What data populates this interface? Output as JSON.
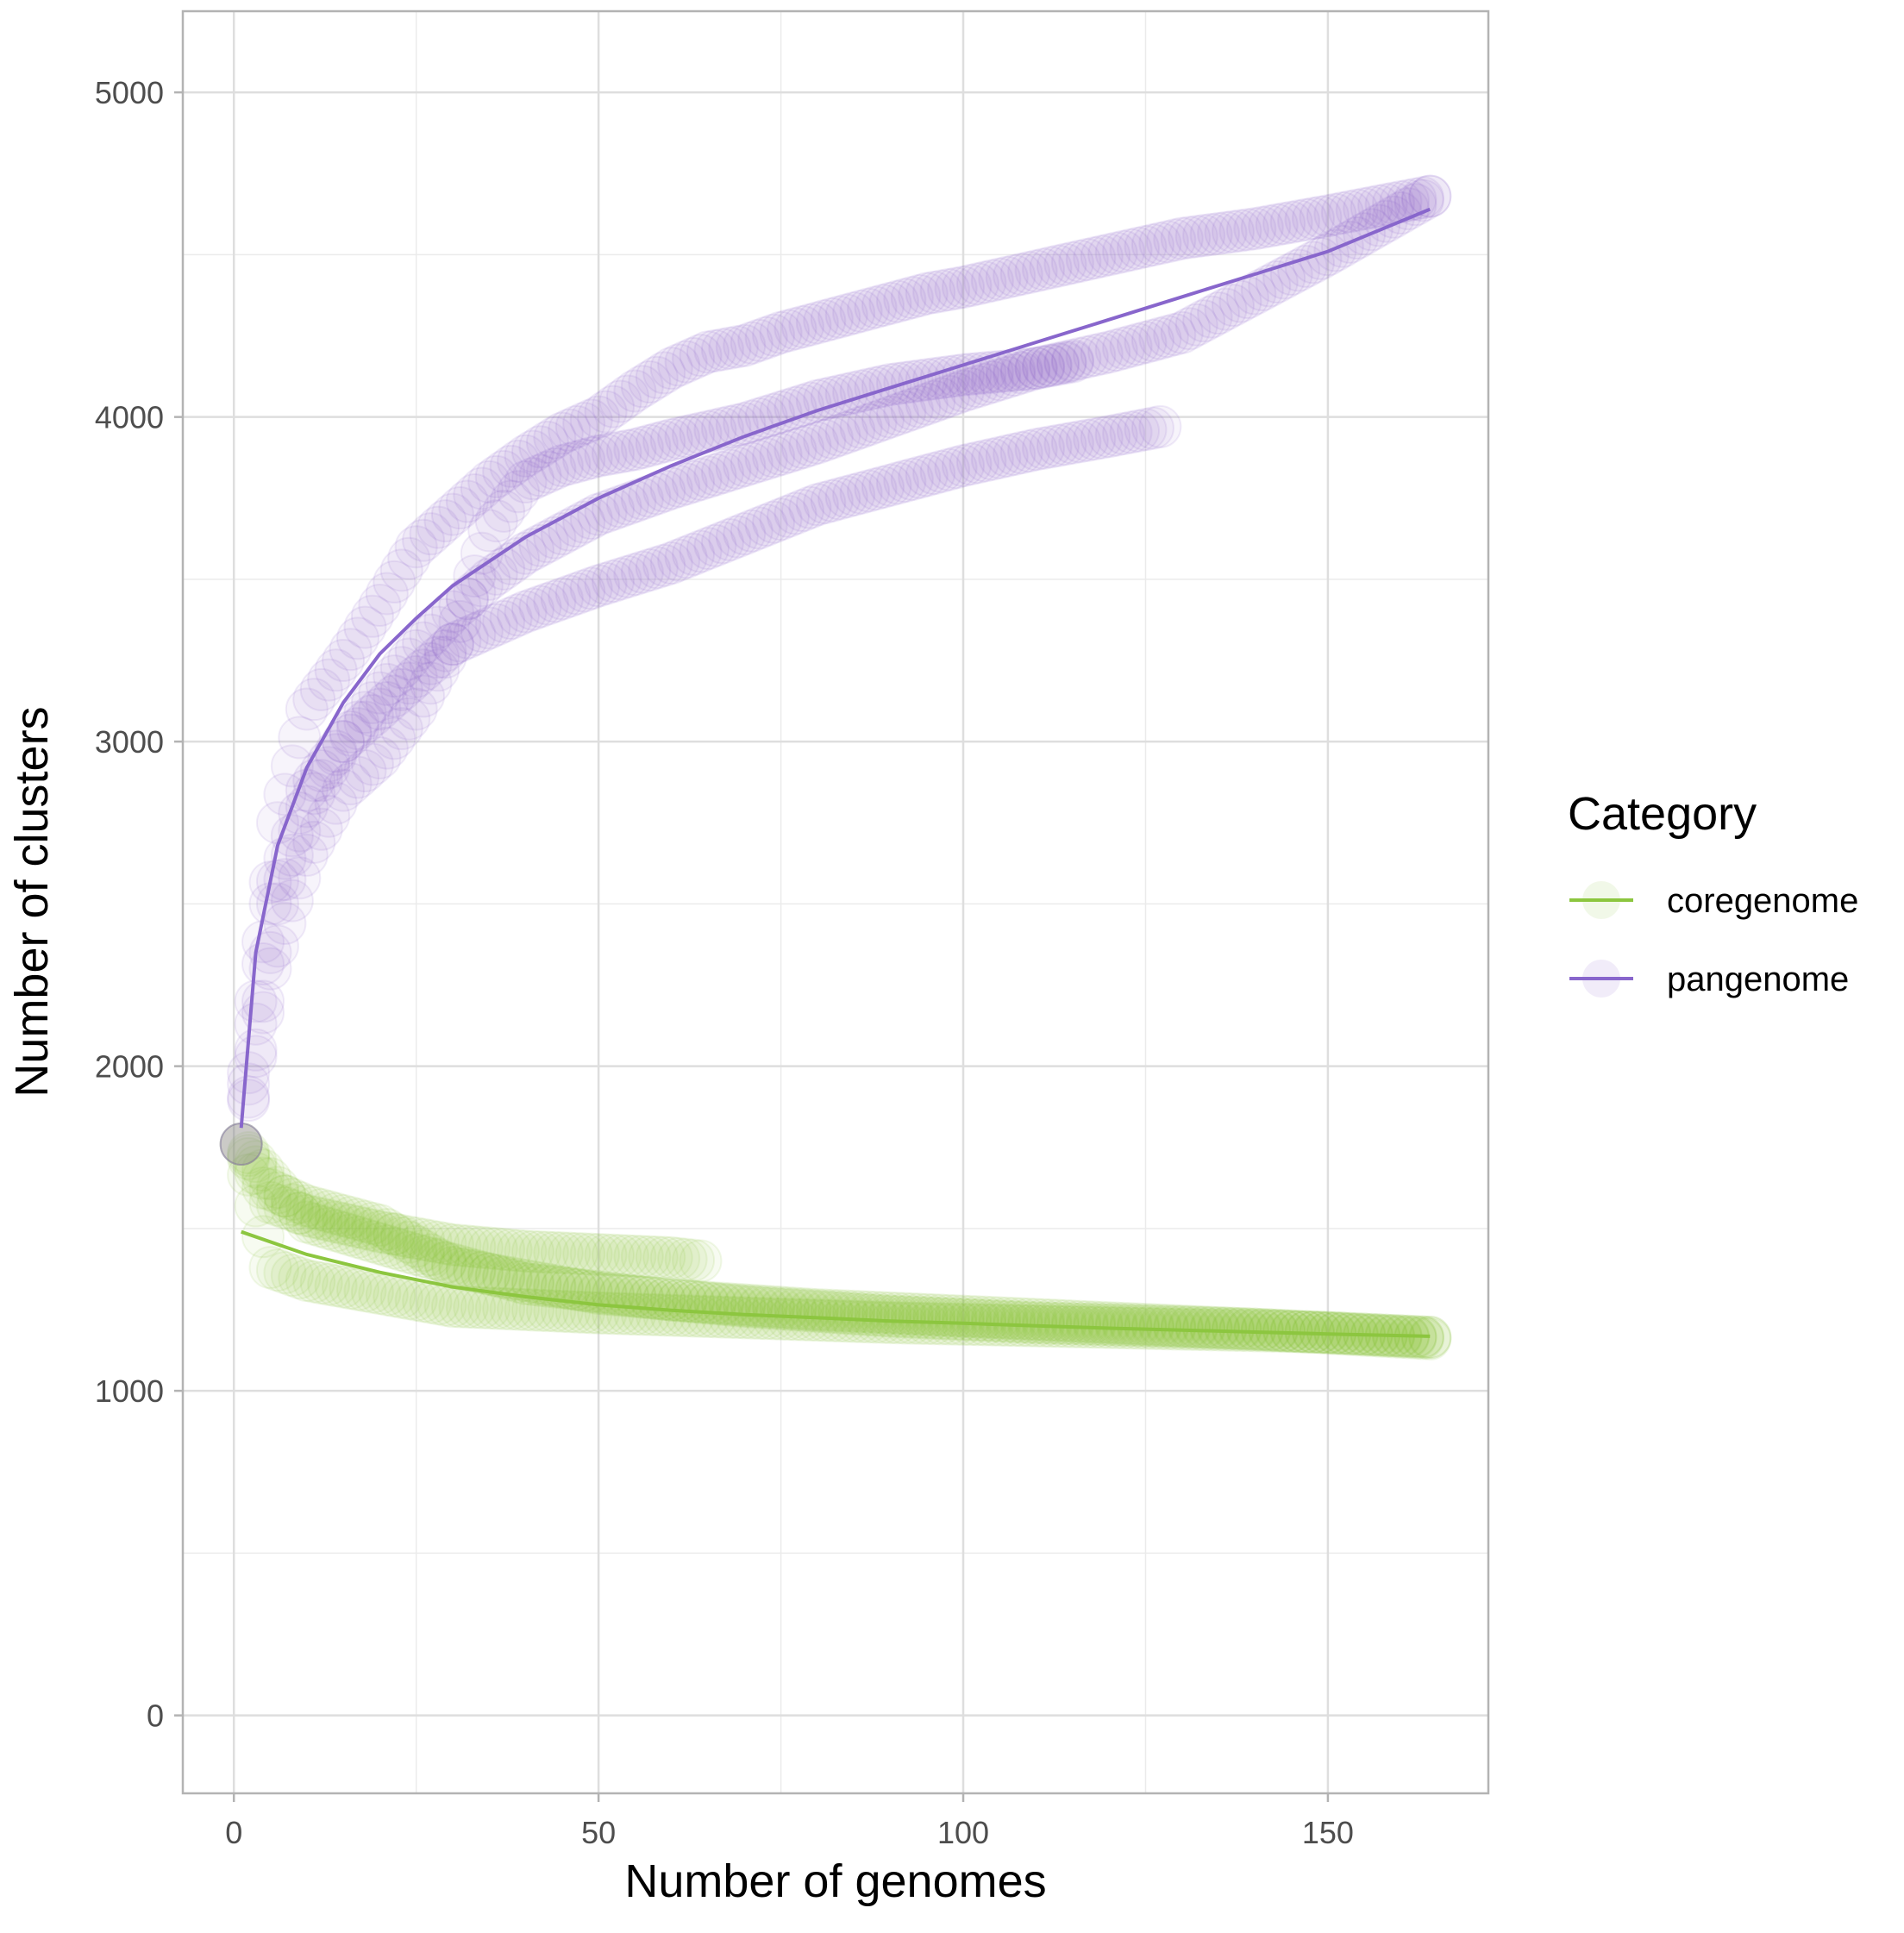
{
  "chart_data": {
    "type": "scatter",
    "title": "",
    "xlabel": "Number of genomes",
    "ylabel": "Number of clusters",
    "xlim": [
      -7,
      172
    ],
    "ylim": [
      -240,
      5250
    ],
    "x_ticks": [
      0,
      50,
      100,
      150
    ],
    "x_tick_labels": [
      "0",
      "50",
      "100",
      "150"
    ],
    "x_minor_gridlines": [
      25,
      75,
      125
    ],
    "y_ticks": [
      0,
      1000,
      2000,
      3000,
      4000,
      5000
    ],
    "y_tick_labels": [
      "0",
      "1000",
      "2000",
      "3000",
      "4000",
      "5000"
    ],
    "y_minor_gridlines": [
      500,
      1500,
      2500,
      3500,
      4500
    ],
    "grid": true,
    "legend": {
      "title": "Category",
      "position": "right",
      "entries": [
        "coregenome",
        "pangenome"
      ]
    },
    "series": [
      {
        "name": "coregenome",
        "color": "#8cc63f",
        "replicates": [
          {
            "x": [
              1,
              5,
              10,
              20,
              30,
              40,
              50,
              60,
              64
            ],
            "y": [
              1760,
              1580,
              1540,
              1490,
              1450,
              1430,
              1420,
              1410,
              1400
            ]
          },
          {
            "x": [
              1,
              5,
              10,
              20,
              30,
              50,
              70,
              90,
              110,
              130,
              150,
              164
            ],
            "y": [
              1760,
              1380,
              1340,
              1300,
              1260,
              1240,
              1225,
              1210,
              1200,
              1190,
              1180,
              1165
            ]
          },
          {
            "x": [
              1,
              5,
              10,
              20,
              30,
              50,
              70,
              90,
              110,
              140,
              164
            ],
            "y": [
              1760,
              1620,
              1570,
              1510,
              1380,
              1300,
              1260,
              1230,
              1210,
              1190,
              1165
            ]
          },
          {
            "x": [
              1,
              10,
              25,
              40,
              60,
              80,
              100,
              120,
              140,
              164
            ],
            "y": [
              1760,
              1520,
              1420,
              1330,
              1280,
              1250,
              1230,
              1210,
              1190,
              1160
            ]
          }
        ],
        "fit": {
          "x": [
            1,
            10,
            20,
            30,
            40,
            50,
            60,
            70,
            80,
            90,
            100,
            110,
            120,
            130,
            140,
            150,
            164
          ],
          "y": [
            1490,
            1420,
            1365,
            1320,
            1290,
            1265,
            1248,
            1235,
            1225,
            1215,
            1208,
            1200,
            1193,
            1187,
            1181,
            1175,
            1168
          ]
        }
      },
      {
        "name": "pangenome",
        "color": "#8866cc",
        "replicates": [
          {
            "x": [
              1,
              3,
              6,
              10,
              15,
              20,
              25,
              30,
              35,
              40,
              45,
              50,
              55,
              60,
              65,
              70,
              75,
              80,
              85,
              90,
              95,
              100,
              110,
              120,
              130,
              140,
              150,
              164
            ],
            "y": [
              1760,
              2200,
              2750,
              3100,
              3250,
              3420,
              3600,
              3700,
              3800,
              3880,
              3950,
              4000,
              4080,
              4150,
              4200,
              4220,
              4260,
              4290,
              4320,
              4350,
              4380,
              4400,
              4450,
              4500,
              4550,
              4580,
              4620,
              4680
            ]
          },
          {
            "x": [
              1,
              3,
              6,
              10,
              15,
              20,
              25,
              30,
              35,
              40,
              50,
              60,
              70,
              80,
              90,
              100,
              110,
              120,
              130,
              140,
              150,
              164
            ],
            "y": [
              1760,
              2050,
              2500,
              2800,
              3000,
              3150,
              3280,
              3400,
              3500,
              3580,
              3700,
              3780,
              3850,
              3920,
              4000,
              4080,
              4150,
              4200,
              4260,
              4380,
              4500,
              4680
            ]
          },
          {
            "x": [
              1,
              5,
              10,
              15,
              20,
              25,
              30,
              40,
              50,
              60,
              70,
              80,
              90,
              100,
              110,
              120,
              127
            ],
            "y": [
              1760,
              2500,
              2850,
              3000,
              3100,
              3200,
              3300,
              3400,
              3480,
              3550,
              3640,
              3730,
              3790,
              3850,
              3900,
              3940,
              3970
            ]
          },
          {
            "x": [
              1,
              5,
              10,
              15,
              20,
              25,
              30,
              35,
              40,
              45,
              50,
              55,
              60,
              70,
              80,
              90,
              100,
              110,
              115
            ],
            "y": [
              1760,
              2300,
              2650,
              2850,
              2950,
              3100,
              3300,
              3650,
              3800,
              3850,
              3880,
              3900,
              3930,
              3980,
              4050,
              4100,
              4130,
              4150,
              4170
            ]
          }
        ],
        "fit": {
          "x": [
            1,
            3,
            6,
            10,
            15,
            20,
            25,
            30,
            40,
            50,
            60,
            70,
            80,
            90,
            100,
            110,
            120,
            130,
            140,
            150,
            164
          ],
          "y": [
            1810,
            2350,
            2680,
            2920,
            3120,
            3270,
            3380,
            3480,
            3630,
            3750,
            3850,
            3940,
            4020,
            4090,
            4160,
            4230,
            4300,
            4370,
            4440,
            4510,
            4640
          ]
        }
      }
    ]
  }
}
